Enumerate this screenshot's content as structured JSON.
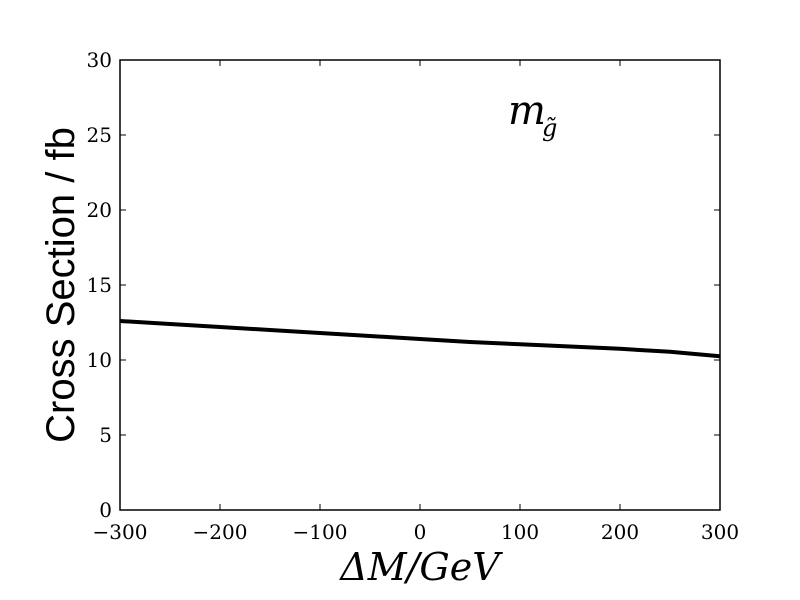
{
  "chart_data": {
    "type": "line",
    "title": "",
    "xlabel": "ΔM/GeV",
    "ylabel": "Cross Section / fb",
    "xlim": [
      -300,
      300
    ],
    "ylim": [
      0,
      30
    ],
    "xticks": [
      -300,
      -200,
      -100,
      0,
      100,
      200,
      300
    ],
    "xtick_labels": [
      "−300",
      "−200",
      "−100",
      "0",
      "100",
      "200",
      "300"
    ],
    "yticks": [
      0,
      5,
      10,
      15,
      20,
      25,
      30
    ],
    "ytick_labels": [
      "0",
      "5",
      "10",
      "15",
      "20",
      "25",
      "30"
    ],
    "grid": false,
    "annotation": {
      "base": "m",
      "sub": "g̃"
    },
    "series": [
      {
        "color": "#000000",
        "x": [
          -300,
          -250,
          -200,
          -150,
          -100,
          -50,
          0,
          50,
          100,
          150,
          200,
          250,
          300
        ],
        "y": [
          12.6,
          12.4,
          12.2,
          12.0,
          11.8,
          11.6,
          11.4,
          11.2,
          11.05,
          10.9,
          10.75,
          10.55,
          10.25
        ]
      }
    ]
  }
}
